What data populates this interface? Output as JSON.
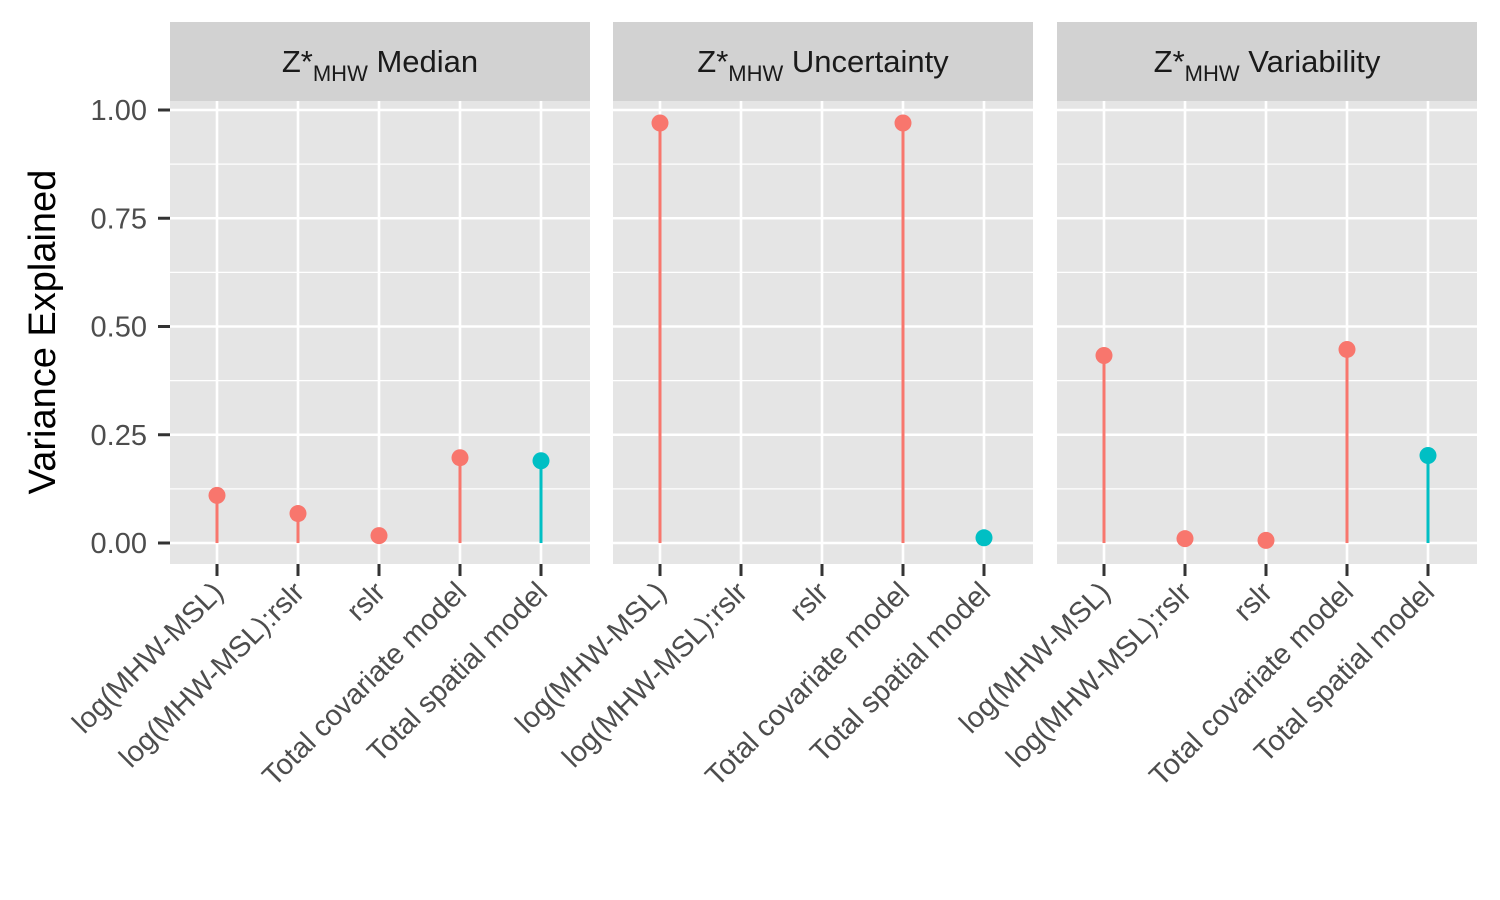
{
  "chart_data": {
    "type": "lollipop",
    "ylabel": "Variance Explained",
    "ylim": [
      -0.05,
      1.0
    ],
    "yticks": [
      "0.00",
      "0.25",
      "0.50",
      "0.75",
      "1.00"
    ],
    "ytick_values": [
      0,
      0.25,
      0.5,
      0.75,
      1.0
    ],
    "categories": [
      "log(MHW-MSL)",
      "log(MHW-MSL):rslr",
      "rslr",
      "Total covariate model",
      "Total spatial model"
    ],
    "category_colors": [
      "#F8766D",
      "#F8766D",
      "#F8766D",
      "#F8766D",
      "#00BFC4"
    ],
    "grid": true,
    "panels": [
      {
        "title_main": "Z*",
        "title_sub": "MHW",
        "title_rest": " Median",
        "values": [
          0.11,
          0.068,
          0.017,
          0.197,
          0.19
        ]
      },
      {
        "title_main": "Z*",
        "title_sub": "MHW",
        "title_rest": " Uncertainty",
        "values": [
          0.97,
          null,
          null,
          0.97,
          0.012
        ]
      },
      {
        "title_main": "Z*",
        "title_sub": "MHW",
        "title_rest": " Variability",
        "values": [
          0.433,
          0.01,
          0.006,
          0.447,
          0.202
        ]
      }
    ]
  },
  "colors": {
    "covariate": "#F8766D",
    "spatial": "#00BFC4",
    "panel_background": "#E5E5E5",
    "strip_background": "#D2D2D2"
  }
}
